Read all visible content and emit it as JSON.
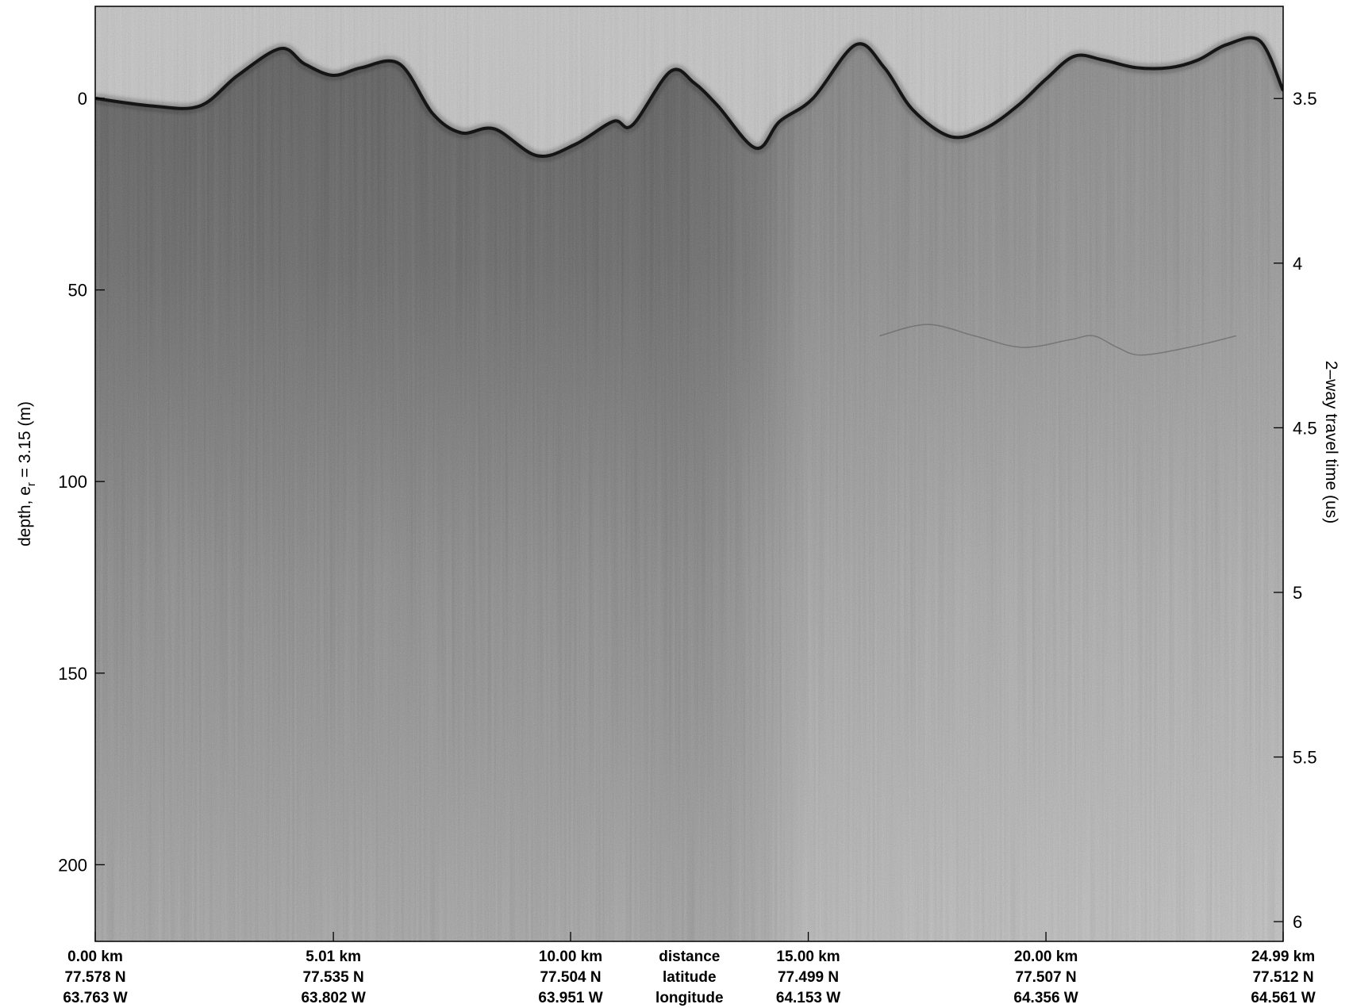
{
  "chart_data": {
    "type": "heatmap",
    "description_kind": "radar echogram",
    "colormap": "grayscale",
    "left_axis": {
      "label_main": "depth, e",
      "label_sub": "r",
      "label_tail": " = 3.15 (m)",
      "range": [
        -24,
        220
      ],
      "reversed": true,
      "ticks": [
        0,
        50,
        100,
        150,
        200
      ]
    },
    "right_axis": {
      "label": "2–way travel time (us)",
      "range": [
        3.22,
        6.06
      ],
      "reversed": true,
      "ticks": [
        3.5,
        4,
        4.5,
        5,
        5.5,
        6
      ]
    },
    "x_axis": {
      "range_km": [
        0,
        24.99
      ],
      "ticks_km": [
        0,
        5.01,
        10.0,
        15.0,
        20.0,
        24.99
      ],
      "label_rows": [
        {
          "name": "distance",
          "values": [
            "0.00 km",
            "5.01 km",
            "10.00 km",
            "15.00 km",
            "20.00 km",
            "24.99 km"
          ]
        },
        {
          "name": "latitude",
          "values": [
            "77.578 N",
            "77.535 N",
            "77.504 N",
            "77.499 N",
            "77.507 N",
            "77.512 N"
          ]
        },
        {
          "name": "longitude",
          "values": [
            "63.763 W",
            "63.802 W",
            "63.951 W",
            "64.153 W",
            "64.356 W",
            "64.561 W"
          ]
        }
      ],
      "legend_column_position_km": 12.5
    },
    "surface_reflector": {
      "x_km": [
        0,
        1.2,
        2.2,
        3.0,
        3.9,
        4.4,
        5.0,
        5.6,
        6.4,
        7.1,
        7.7,
        8.4,
        9.3,
        10.1,
        10.9,
        11.3,
        12.1,
        12.6,
        13.1,
        13.9,
        14.4,
        15.1,
        16.0,
        16.6,
        17.2,
        18.0,
        18.7,
        19.4,
        20.0,
        20.6,
        21.2,
        21.9,
        22.6,
        23.2,
        23.8,
        24.5,
        24.99
      ],
      "depth_m": [
        0,
        2,
        2,
        -6,
        -13,
        -9,
        -6,
        -8,
        -9,
        4,
        9,
        8,
        15,
        12,
        6,
        7,
        -7,
        -4,
        2,
        13,
        6,
        0,
        -14,
        -8,
        3,
        10,
        8,
        2,
        -5,
        -11,
        -10,
        -8,
        -8,
        -10,
        -14,
        -15,
        -2
      ]
    },
    "internal_layer": {
      "x_km": [
        16.5,
        17.5,
        18.5,
        19.5,
        20.5,
        21.0,
        21.5,
        22.0,
        23.0,
        24.0
      ],
      "depth_m": [
        62,
        59,
        62,
        65,
        63,
        62,
        65,
        67,
        65,
        62
      ]
    },
    "grid": false,
    "legend": "none"
  }
}
